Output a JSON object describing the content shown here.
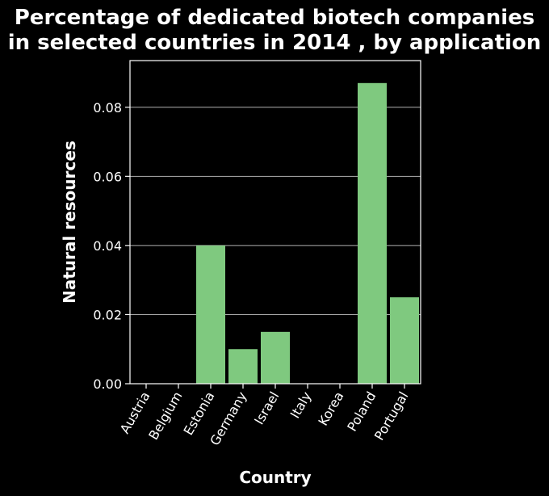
{
  "chart_data": {
    "type": "bar",
    "title": "Percentage of dedicated biotech companies in selected countries in 2014 , by application",
    "title_lines": [
      "Percentage of dedicated biotech companies",
      "in selected countries in 2014 , by application"
    ],
    "xlabel": "Country",
    "ylabel": "Natural resources",
    "categories": [
      "Austria",
      "Belgium",
      "Estonia",
      "Germany",
      "Israel",
      "Italy",
      "Korea",
      "Poland",
      "Portugal"
    ],
    "values": [
      0,
      0,
      0.04,
      0.01,
      0.015,
      0,
      0,
      0.087,
      0.025
    ],
    "ylim": [
      0,
      0.0935
    ],
    "yticks": [
      0.0,
      0.02,
      0.04,
      0.06,
      0.08
    ],
    "ytick_labels": [
      "0.00",
      "0.02",
      "0.04",
      "0.06",
      "0.08"
    ],
    "grid": true,
    "bar_color": "#7fc97f",
    "background": "#000000",
    "text_color": "#ffffff",
    "grid_color": "#b0b0b0"
  }
}
